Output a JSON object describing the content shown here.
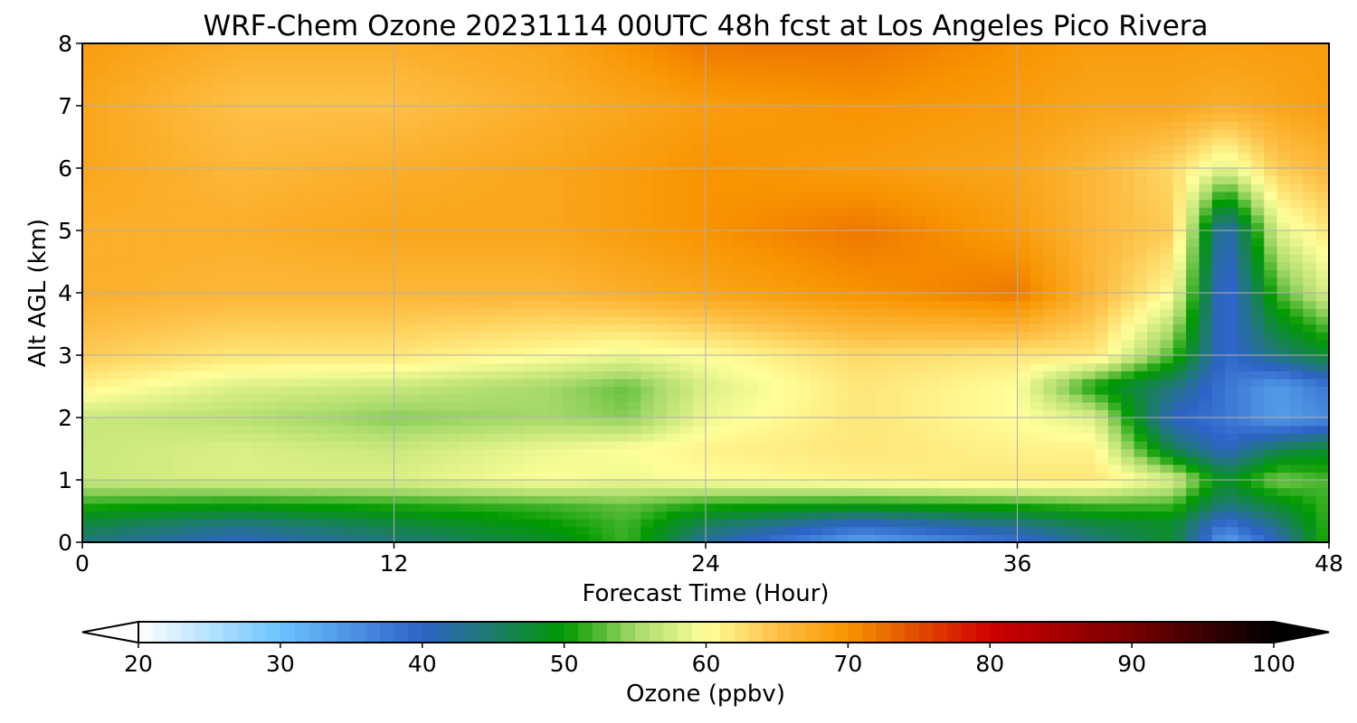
{
  "chart_data": {
    "type": "heatmap",
    "title": "WRF-Chem Ozone  20231114 00UTC 48h fcst at Los Angeles Pico Rivera",
    "xlabel": "Forecast Time (Hour)",
    "ylabel": "Alt AGL (km)",
    "xlim": [
      0,
      48
    ],
    "ylim": [
      0,
      8
    ],
    "xticks": [
      0,
      12,
      24,
      36,
      48
    ],
    "yticks": [
      0,
      1,
      2,
      3,
      4,
      5,
      6,
      7,
      8
    ],
    "grid": true,
    "x": [
      0,
      6,
      12,
      18,
      21,
      24,
      30,
      36,
      39,
      42,
      44,
      46,
      48
    ],
    "y": [
      0,
      0.3,
      0.6,
      1.0,
      1.5,
      2.0,
      2.5,
      3.0,
      4.0,
      5.0,
      6.0,
      7.0,
      8.0
    ],
    "z": [
      [
        44,
        40,
        44,
        48,
        52,
        42,
        33,
        38,
        44,
        48,
        33,
        40,
        52
      ],
      [
        47,
        44,
        47,
        50,
        52,
        46,
        40,
        44,
        47,
        48,
        38,
        44,
        52
      ],
      [
        51,
        50,
        51,
        52,
        53,
        51,
        50,
        51,
        52,
        52,
        44,
        48,
        52
      ],
      [
        57,
        58,
        58,
        60,
        59,
        60,
        61,
        62,
        62,
        58,
        48,
        54,
        52
      ],
      [
        57,
        58,
        57,
        59,
        60,
        61,
        62,
        61,
        61,
        46,
        40,
        46,
        48
      ],
      [
        57,
        56,
        54,
        55,
        54,
        59,
        62,
        60,
        58,
        40,
        38,
        34,
        36
      ],
      [
        61,
        58,
        57,
        55,
        53,
        58,
        62,
        60,
        50,
        44,
        38,
        34,
        38
      ],
      [
        64,
        62,
        62,
        60,
        59,
        60,
        63,
        62,
        62,
        52,
        39,
        44,
        48
      ],
      [
        67,
        66,
        66,
        66,
        67,
        68,
        70,
        72,
        66,
        60,
        38,
        52,
        58
      ],
      [
        67,
        67,
        68,
        68,
        69,
        70,
        72,
        69,
        66,
        64,
        40,
        58,
        62
      ],
      [
        68,
        66,
        67,
        68,
        69,
        70,
        69,
        68,
        66,
        63,
        58,
        64,
        66
      ],
      [
        68,
        65,
        65,
        67,
        68,
        69,
        70,
        69,
        68,
        68,
        67,
        68,
        69
      ],
      [
        69,
        67,
        67,
        68,
        70,
        72,
        72,
        70,
        69,
        69,
        69,
        69,
        69
      ]
    ],
    "colorbar": {
      "label": "Ozone  (ppbv)",
      "min": 20,
      "max": 100,
      "ticks": [
        20,
        30,
        40,
        50,
        60,
        70,
        80,
        90,
        100
      ],
      "extend": "both",
      "colors": [
        {
          "v": 20,
          "c": "#ffffff"
        },
        {
          "v": 30,
          "c": "#6cc4ff"
        },
        {
          "v": 40,
          "c": "#2e63c8"
        },
        {
          "v": 45,
          "c": "#1d7c6a"
        },
        {
          "v": 50,
          "c": "#009a00"
        },
        {
          "v": 55,
          "c": "#a6d96a"
        },
        {
          "v": 60,
          "c": "#ffff9a"
        },
        {
          "v": 65,
          "c": "#fdc046"
        },
        {
          "v": 70,
          "c": "#f89400"
        },
        {
          "v": 74,
          "c": "#e45a00"
        },
        {
          "v": 80,
          "c": "#d00000"
        },
        {
          "v": 90,
          "c": "#780000"
        },
        {
          "v": 100,
          "c": "#000000"
        }
      ]
    }
  }
}
